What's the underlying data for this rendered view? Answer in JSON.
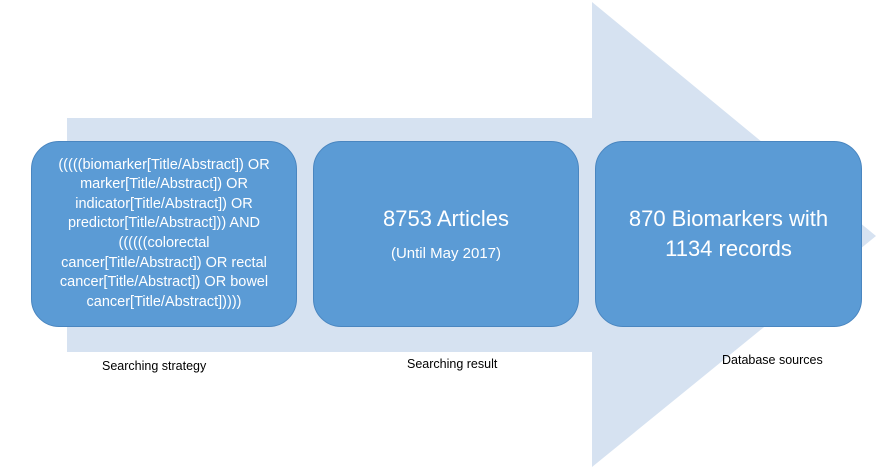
{
  "colors": {
    "arrow": "#d6e2f1",
    "box_fill": "#5b9bd5",
    "box_border": "#4a86c0",
    "box_text": "#ffffff",
    "caption_text": "#000000"
  },
  "steps": [
    {
      "box_text": "(((((biomarker[Title/Abstract]) OR\nmarker[Title/Abstract]) OR\nindicator[Title/Abstract]) OR\npredictor[Title/Abstract])) AND\n((((((colorectal\ncancer[Title/Abstract]) OR rectal\ncancer[Title/Abstract]) OR bowel\ncancer[Title/Abstract]))))",
      "caption": "Searching strategy"
    },
    {
      "box_title": "8753 Articles",
      "box_subtitle": "(Until May 2017)",
      "caption": "Searching result"
    },
    {
      "box_text": "870 Biomarkers with\n1134 records",
      "caption": "Database sources"
    }
  ]
}
